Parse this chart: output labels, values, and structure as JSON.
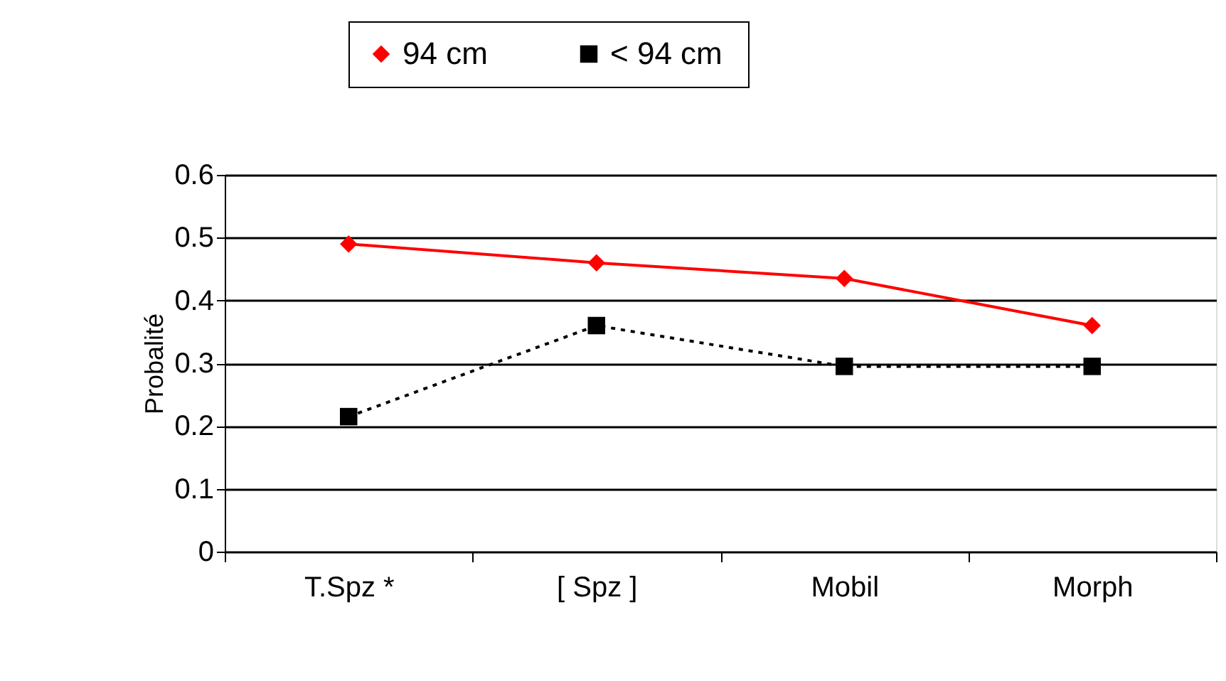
{
  "chart_data": {
    "type": "line",
    "categories": [
      "T.Spz *",
      "[ Spz ]",
      "Mobil",
      "Morph"
    ],
    "ylabel": "Probalité",
    "ylim": [
      0,
      0.6
    ],
    "yticks": [
      0,
      0.1,
      0.2,
      0.3,
      0.4,
      0.5,
      0.6
    ],
    "grid": "y",
    "legend": "top",
    "series": [
      {
        "name": "94 cm",
        "color": "#ff0000",
        "marker": "diamond",
        "line_style": "solid",
        "values": [
          0.49,
          0.46,
          0.435,
          0.36
        ]
      },
      {
        "name": "<  94 cm",
        "color": "#000000",
        "marker": "square",
        "line_style": "dotted",
        "values": [
          0.215,
          0.36,
          0.295,
          0.295
        ]
      }
    ]
  }
}
